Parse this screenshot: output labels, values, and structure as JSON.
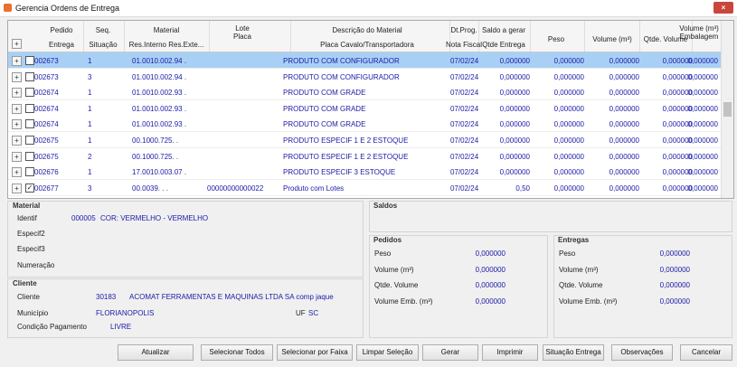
{
  "window": {
    "title": "Gerencia Ordens de Entrega"
  },
  "table": {
    "headers": [
      [
        "Pedido",
        "Entrega"
      ],
      [
        "Seq.",
        "Situação"
      ],
      [
        "Material",
        "Res.Interno Res.Exte..."
      ],
      [
        "Lote",
        "Placa"
      ],
      [
        "Descrição do Material",
        "Placa Cavalo/Transportadora"
      ],
      [
        "Dt.Prog.",
        "Nota Fiscal"
      ],
      [
        "Saldo a gerar",
        "Qtde Entrega"
      ],
      [
        "Peso"
      ],
      [
        "Volume (m³)"
      ],
      [
        "Qtde. Volume"
      ],
      [
        "Volume (m³)",
        "Embalagem"
      ]
    ],
    "rows": [
      {
        "selected": true,
        "checked": false,
        "cells": [
          "002673",
          "1",
          "01.0010.002.94 .",
          null,
          "PRODUTO COM CONFIGURADOR",
          "07/02/24",
          "0,000000",
          "0,000000",
          "0,000000",
          "0,000000",
          "0,000000"
        ]
      },
      {
        "selected": false,
        "checked": false,
        "cells": [
          "002673",
          "3",
          "01.0010.002.94 .",
          null,
          "PRODUTO COM CONFIGURADOR",
          "07/02/24",
          "0,000000",
          "0,000000",
          "0,000000",
          "0,000000",
          "0,000000"
        ]
      },
      {
        "selected": false,
        "checked": false,
        "cells": [
          "002674",
          "1",
          "01.0010.002.93 .",
          null,
          "PRODUTO COM GRADE",
          "07/02/24",
          "0,000000",
          "0,000000",
          "0,000000",
          "0,000000",
          "0,000000"
        ]
      },
      {
        "selected": false,
        "checked": false,
        "cells": [
          "002674",
          "1",
          "01.0010.002.93 .",
          null,
          "PRODUTO COM GRADE",
          "07/02/24",
          "0,000000",
          "0,000000",
          "0,000000",
          "0,000000",
          "0,000000"
        ]
      },
      {
        "selected": false,
        "checked": false,
        "cells": [
          "002674",
          "1",
          "01.0010.002.93 .",
          null,
          "PRODUTO COM GRADE",
          "07/02/24",
          "0,000000",
          "0,000000",
          "0,000000",
          "0,000000",
          "0,000000"
        ]
      },
      {
        "selected": false,
        "checked": false,
        "cells": [
          "002675",
          "1",
          "00.1000.725.  .",
          null,
          "PRODUTO ESPECIF 1 E 2 ESTOQUE",
          "07/02/24",
          "0,000000",
          "0,000000",
          "0,000000",
          "0,000000",
          "0,000000"
        ]
      },
      {
        "selected": false,
        "checked": false,
        "cells": [
          "002675",
          "2",
          "00.1000.725.  .",
          null,
          "PRODUTO ESPECIF 1 E 2 ESTOQUE",
          "07/02/24",
          "0,000000",
          "0,000000",
          "0,000000",
          "0,000000",
          "0,000000"
        ]
      },
      {
        "selected": false,
        "checked": false,
        "cells": [
          "002676",
          "1",
          "17.0010.003.07 .",
          null,
          "PRODUTO ESPECIF 3 ESTOQUE",
          "07/02/24",
          "0,000000",
          "0,000000",
          "0,000000",
          "0,000000",
          "0,000000"
        ]
      },
      {
        "selected": false,
        "checked": true,
        "cells": [
          "002677",
          "3",
          "00.0039.  .  .",
          "00000000000022",
          "Produto com Lotes",
          "07/02/24",
          "0,50",
          "0,000000",
          "0,000000",
          "0,000000",
          "0,000000"
        ]
      }
    ]
  },
  "material": {
    "title": "Material",
    "identif_label": "Identif",
    "identif": "000005",
    "identif_desc": "COR: VERMELHO - VERMELHO",
    "especif2": "Especif2",
    "especif3": "Especif3",
    "numeracao": "Numeração"
  },
  "cliente": {
    "title": "Cliente",
    "cliente_label": "Cliente",
    "codigo": "30183",
    "nome": "ACOMAT FERRAMENTAS E MAQUINAS LTDA SA comp jaque",
    "municipio_label": "Município",
    "municipio": "FLORIANOPOLIS",
    "uf_label": "UF",
    "uf": "SC",
    "condicao_label": "Condição Pagamento",
    "condicao": "LIVRE"
  },
  "saldos": {
    "title": "Saldos"
  },
  "pedidos": {
    "title": "Pedidos",
    "fields": [
      [
        "Peso",
        "0,000000"
      ],
      [
        "Volume (m³)",
        "0,000000"
      ],
      [
        "Qtde. Volume",
        "0,000000"
      ],
      [
        "Volume Emb. (m³)",
        "0,000000"
      ]
    ]
  },
  "entregas": {
    "title": "Entregas",
    "fields": [
      [
        "Peso",
        "0,000000"
      ],
      [
        "Volume (m³)",
        "0,000000"
      ],
      [
        "Qtde. Volume",
        "0,000000"
      ],
      [
        "Volume Emb. (m³)",
        "0,000000"
      ]
    ]
  },
  "buttons": [
    "Atualizar",
    "Selecionar Todos",
    "Selecionar por Faixa",
    "Limpar Seleção",
    "Gerar",
    "Imprimir",
    "Situação Entrega",
    "Observações",
    "Cancelar"
  ]
}
